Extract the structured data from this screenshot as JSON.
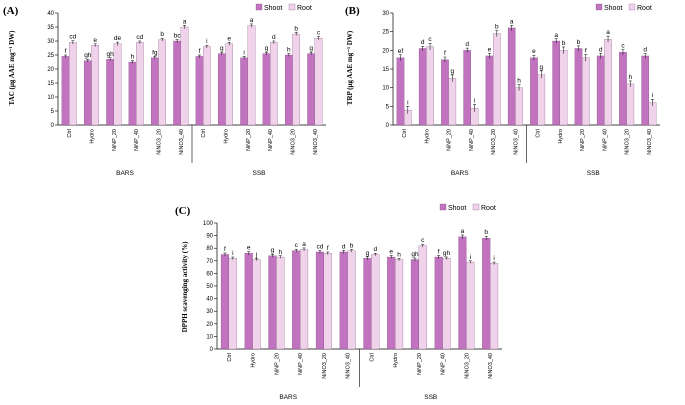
{
  "chart_data": [
    {
      "type": "bar",
      "panel": "(A)",
      "ylabel": "TAC (µg AAE mg⁻¹ DW)",
      "ylim": [
        0,
        40
      ],
      "yticks": [
        0,
        5,
        10,
        15,
        20,
        25,
        30,
        35,
        40
      ],
      "categories": [
        "Ctrl",
        "Hydro",
        "NiNP_20",
        "NiNP_40",
        "NiNO3_20",
        "NiNO3_40",
        "Ctrl",
        "Hydro",
        "NiNP_20",
        "NiNP_40",
        "NiNO3_20",
        "NiNO3_40"
      ],
      "groups": [
        {
          "name": "BARS",
          "count": 6
        },
        {
          "name": "SSB",
          "count": 6
        }
      ],
      "legend": "top-right",
      "series": [
        {
          "name": "Shoot",
          "color": "#c173bf",
          "values": [
            24.5,
            23.0,
            23.5,
            22.5,
            24.0,
            30.0,
            24.5,
            25.5,
            24.0,
            25.5,
            25.0,
            25.5
          ],
          "errors": [
            0.5,
            0.5,
            0.5,
            0.5,
            0.5,
            0.5,
            0.5,
            0.5,
            0.5,
            0.5,
            0.5,
            0.5
          ],
          "letters": [
            "f",
            "gh",
            "gh",
            "h",
            "fg",
            "bc",
            "f",
            "g",
            "i",
            "g",
            "h",
            "g"
          ]
        },
        {
          "name": "Root",
          "color": "#f0d2ea",
          "values": [
            29.5,
            28.5,
            29.0,
            29.5,
            30.5,
            35.0,
            28.0,
            29.0,
            35.5,
            29.5,
            32.5,
            31.0
          ],
          "errors": [
            0.6,
            0.5,
            0.6,
            0.5,
            0.5,
            0.6,
            0.5,
            0.5,
            0.6,
            0.5,
            0.6,
            0.6
          ],
          "letters": [
            "cd",
            "e",
            "de",
            "cd",
            "b",
            "a",
            "i",
            "e",
            "a",
            "d",
            "b",
            "c"
          ]
        }
      ]
    },
    {
      "type": "bar",
      "panel": "(B)",
      "ylabel": "TRP (µg AAE mg⁻¹ DW)",
      "ylim": [
        0,
        30
      ],
      "yticks": [
        0,
        5,
        10,
        15,
        20,
        25,
        30
      ],
      "categories": [
        "Ctrl",
        "Hydro",
        "NiNP_20",
        "NiNP_40",
        "NiNO3_20",
        "NiNO3_40",
        "Ctrl",
        "Hydro",
        "NiNP_20",
        "NiNP_40",
        "NiNO3_20",
        "NiNO3_40"
      ],
      "groups": [
        {
          "name": "BARS",
          "count": 6
        },
        {
          "name": "SSB",
          "count": 6
        }
      ],
      "legend": "top-right",
      "series": [
        {
          "name": "Shoot",
          "color": "#c173bf",
          "values": [
            18.0,
            20.5,
            17.5,
            20.0,
            18.5,
            26.0,
            18.0,
            22.5,
            20.5,
            18.5,
            19.5,
            18.5
          ],
          "errors": [
            0.8,
            0.6,
            0.7,
            0.6,
            0.7,
            0.7,
            0.7,
            0.6,
            0.7,
            0.7,
            0.7,
            0.6
          ],
          "letters": [
            "ef",
            "d",
            "f",
            "d",
            "e",
            "a",
            "e",
            "a",
            "b",
            "d",
            "c",
            "d"
          ]
        },
        {
          "name": "Root",
          "color": "#f0d2ea",
          "values": [
            4.0,
            21.0,
            12.5,
            4.5,
            24.5,
            10.0,
            13.5,
            20.0,
            18.0,
            23.0,
            11.0,
            6.0
          ],
          "errors": [
            1.0,
            0.9,
            0.9,
            1.0,
            0.8,
            0.8,
            1.0,
            0.9,
            0.9,
            0.8,
            0.8,
            0.9
          ],
          "letters": [
            "i",
            "c",
            "g",
            "i",
            "b",
            "h",
            "g",
            "b",
            "f",
            "a",
            "h",
            "i"
          ]
        }
      ]
    },
    {
      "type": "bar",
      "panel": "(C)",
      "ylabel": "DPPH scavenging activity (%)",
      "ylim": [
        0,
        100
      ],
      "yticks": [
        0,
        10,
        20,
        30,
        40,
        50,
        60,
        70,
        80,
        90,
        100
      ],
      "categories": [
        "Ctrl",
        "Hydro",
        "NiNP_20",
        "NiNP_40",
        "NiNO3_20",
        "NiNO3_40",
        "Ctrl",
        "Hydro",
        "NiNP_20",
        "NiNP_40",
        "NiNO3_20",
        "NiNO3_40"
      ],
      "groups": [
        {
          "name": "BARS",
          "count": 6
        },
        {
          "name": "SSB",
          "count": 6
        }
      ],
      "legend": "top-right",
      "series": [
        {
          "name": "Shoot",
          "color": "#c173bf",
          "values": [
            75,
            76,
            74,
            78,
            77,
            77,
            72,
            73,
            71,
            73,
            89,
            88
          ],
          "errors": [
            1.2,
            1.2,
            1.2,
            1.2,
            1.2,
            1.2,
            1.2,
            1.2,
            1.2,
            1.2,
            1.5,
            1.5
          ],
          "letters": [
            "f",
            "e",
            "g",
            "c",
            "cd",
            "d",
            "g",
            "e",
            "gh",
            "f",
            "a",
            "b"
          ]
        },
        {
          "name": "Root",
          "color": "#f0d2ea",
          "values": [
            72,
            71,
            73,
            79,
            76,
            78,
            75,
            71,
            82,
            72,
            69,
            68
          ],
          "errors": [
            1.0,
            1.0,
            1.0,
            1.2,
            1.0,
            1.0,
            1.0,
            1.0,
            1.2,
            1.0,
            1.0,
            1.0
          ],
          "letters": [
            "i",
            "j",
            "h",
            "a",
            "f",
            "b",
            "d",
            "h",
            "c",
            "gh",
            "i",
            "i"
          ]
        }
      ]
    }
  ]
}
